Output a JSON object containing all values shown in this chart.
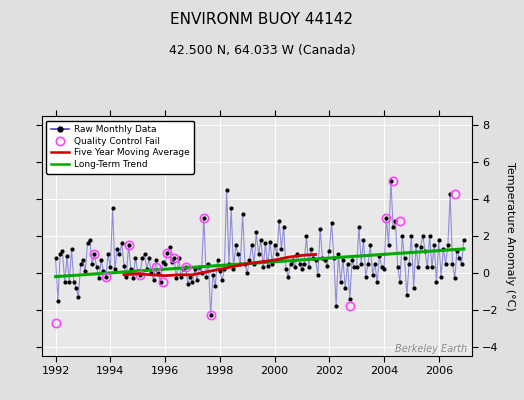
{
  "title": "ENVIRONM BUOY 44142",
  "subtitle": "42.500 N, 64.033 W (Canada)",
  "ylabel": "Temperature Anomaly (°C)",
  "watermark": "Berkeley Earth",
  "bg_color": "#e0e0e0",
  "plot_bg_color": "#e8e8e8",
  "xlim": [
    1991.5,
    2007.2
  ],
  "ylim": [
    -4.5,
    8.5
  ],
  "yticks": [
    -4,
    -2,
    0,
    2,
    4,
    6,
    8
  ],
  "xticks": [
    1992,
    1994,
    1996,
    1998,
    2000,
    2002,
    2004,
    2006
  ],
  "raw_x": [
    1992.0,
    1992.083,
    1992.167,
    1992.25,
    1992.333,
    1992.417,
    1992.5,
    1992.583,
    1992.667,
    1992.75,
    1992.833,
    1992.917,
    1993.0,
    1993.083,
    1993.167,
    1993.25,
    1993.333,
    1993.417,
    1993.5,
    1993.583,
    1993.667,
    1993.75,
    1993.833,
    1993.917,
    1994.0,
    1994.083,
    1994.167,
    1994.25,
    1994.333,
    1994.417,
    1994.5,
    1994.583,
    1994.667,
    1994.75,
    1994.833,
    1994.917,
    1995.0,
    1995.083,
    1995.167,
    1995.25,
    1995.333,
    1995.417,
    1995.5,
    1995.583,
    1995.667,
    1995.75,
    1995.833,
    1995.917,
    1996.0,
    1996.083,
    1996.167,
    1996.25,
    1996.333,
    1996.417,
    1996.5,
    1996.583,
    1996.667,
    1996.75,
    1996.833,
    1996.917,
    1997.0,
    1997.083,
    1997.167,
    1997.25,
    1997.333,
    1997.417,
    1997.5,
    1997.583,
    1997.667,
    1997.75,
    1997.833,
    1997.917,
    1998.0,
    1998.083,
    1998.167,
    1998.25,
    1998.333,
    1998.417,
    1998.5,
    1998.583,
    1998.667,
    1998.75,
    1998.833,
    1998.917,
    1999.0,
    1999.083,
    1999.167,
    1999.25,
    1999.333,
    1999.417,
    1999.5,
    1999.583,
    1999.667,
    1999.75,
    1999.833,
    1999.917,
    2000.0,
    2000.083,
    2000.167,
    2000.25,
    2000.333,
    2000.417,
    2000.5,
    2000.583,
    2000.667,
    2000.75,
    2000.833,
    2000.917,
    2001.0,
    2001.083,
    2001.167,
    2001.25,
    2001.333,
    2001.417,
    2001.5,
    2001.583,
    2001.667,
    2001.75,
    2001.833,
    2001.917,
    2002.0,
    2002.083,
    2002.167,
    2002.25,
    2002.333,
    2002.417,
    2002.5,
    2002.583,
    2002.667,
    2002.75,
    2002.833,
    2002.917,
    2003.0,
    2003.083,
    2003.167,
    2003.25,
    2003.333,
    2003.417,
    2003.5,
    2003.583,
    2003.667,
    2003.75,
    2003.833,
    2003.917,
    2004.0,
    2004.083,
    2004.167,
    2004.25,
    2004.333,
    2004.417,
    2004.5,
    2004.583,
    2004.667,
    2004.75,
    2004.833,
    2004.917,
    2005.0,
    2005.083,
    2005.167,
    2005.25,
    2005.333,
    2005.417,
    2005.5,
    2005.583,
    2005.667,
    2005.75,
    2005.833,
    2005.917,
    2006.0,
    2006.083,
    2006.167,
    2006.25,
    2006.333,
    2006.417,
    2006.5,
    2006.583,
    2006.667,
    2006.75,
    2006.833,
    2006.917
  ],
  "raw_y": [
    0.8,
    -1.5,
    1.0,
    1.2,
    -0.5,
    0.9,
    -0.5,
    1.3,
    -0.5,
    -0.8,
    -1.3,
    0.5,
    0.7,
    0.1,
    1.6,
    1.8,
    0.5,
    1.0,
    0.3,
    -0.3,
    0.7,
    0.1,
    -0.2,
    1.0,
    0.3,
    3.5,
    0.2,
    1.3,
    1.0,
    1.6,
    0.4,
    -0.2,
    1.5,
    0.2,
    -0.3,
    0.8,
    0.1,
    -0.1,
    0.8,
    1.0,
    0.2,
    0.8,
    0.0,
    -0.4,
    0.7,
    0.0,
    -0.5,
    0.6,
    0.5,
    1.1,
    1.4,
    0.6,
    0.8,
    -0.3,
    0.8,
    -0.2,
    0.2,
    0.3,
    -0.6,
    -0.2,
    -0.5,
    0.2,
    -0.4,
    0.3,
    0.0,
    3.0,
    -0.2,
    0.5,
    -2.3,
    -0.1,
    -0.7,
    0.7,
    0.1,
    -0.4,
    0.2,
    4.5,
    0.5,
    3.5,
    0.2,
    1.5,
    1.0,
    0.5,
    3.2,
    0.5,
    0.0,
    0.7,
    1.5,
    0.5,
    2.2,
    1.0,
    1.8,
    0.3,
    1.6,
    0.4,
    1.7,
    0.5,
    1.5,
    1.0,
    2.8,
    1.3,
    2.5,
    0.2,
    -0.2,
    0.5,
    0.7,
    0.3,
    1.0,
    0.5,
    0.2,
    0.5,
    2.0,
    0.3,
    1.3,
    0.8,
    0.7,
    -0.1,
    2.4,
    0.8,
    0.7,
    0.4,
    1.2,
    2.7,
    0.8,
    -1.8,
    1.0,
    -0.5,
    0.7,
    -0.8,
    0.5,
    -1.4,
    0.7,
    0.3,
    0.3,
    2.5,
    0.5,
    1.8,
    -0.2,
    0.5,
    1.5,
    -0.1,
    0.5,
    -0.5,
    0.9,
    0.3,
    0.2,
    3.0,
    1.5,
    5.0,
    2.5,
    2.8,
    0.3,
    -0.5,
    2.0,
    0.8,
    -1.2,
    0.5,
    2.0,
    -0.8,
    1.5,
    0.3,
    1.4,
    2.0,
    1.2,
    0.3,
    2.0,
    0.3,
    1.5,
    -0.5,
    1.8,
    -0.2,
    1.3,
    0.5,
    1.5,
    4.3,
    0.5,
    -0.3,
    1.2,
    0.8,
    0.5,
    1.8
  ],
  "qc_fail_x": [
    1992.0,
    1993.417,
    1993.833,
    1994.667,
    1995.083,
    1995.667,
    1995.917,
    1996.083,
    1996.333,
    1996.75,
    1997.417,
    1997.667,
    2002.75,
    2004.083,
    2004.333,
    2004.583,
    2006.583
  ],
  "qc_fail_y": [
    -2.7,
    1.0,
    -0.2,
    1.5,
    -0.1,
    0.3,
    -0.5,
    1.1,
    0.8,
    0.3,
    3.0,
    -2.3,
    -1.8,
    3.0,
    5.0,
    2.8,
    4.3
  ],
  "ma5_x": [
    1994.5,
    1995.0,
    1995.5,
    1996.0,
    1996.5,
    1997.0,
    1997.5,
    1998.0,
    1998.5,
    1999.0,
    1999.5,
    2000.0,
    2000.5,
    2001.0,
    2001.5
  ],
  "ma5_y": [
    -0.1,
    -0.05,
    -0.1,
    -0.15,
    -0.1,
    -0.1,
    0.05,
    0.2,
    0.35,
    0.5,
    0.6,
    0.7,
    0.85,
    0.95,
    1.0
  ],
  "trend_x": [
    1992.0,
    2006.917
  ],
  "trend_y": [
    -0.2,
    1.3
  ],
  "raw_color": "#4444cc",
  "raw_line_alpha": 0.55,
  "marker_color": "#000000",
  "qc_color": "#ff44ff",
  "ma5_color": "#cc0000",
  "trend_color": "#00aa00",
  "title_fontsize": 11,
  "subtitle_fontsize": 9,
  "tick_fontsize": 8,
  "ylabel_fontsize": 8
}
